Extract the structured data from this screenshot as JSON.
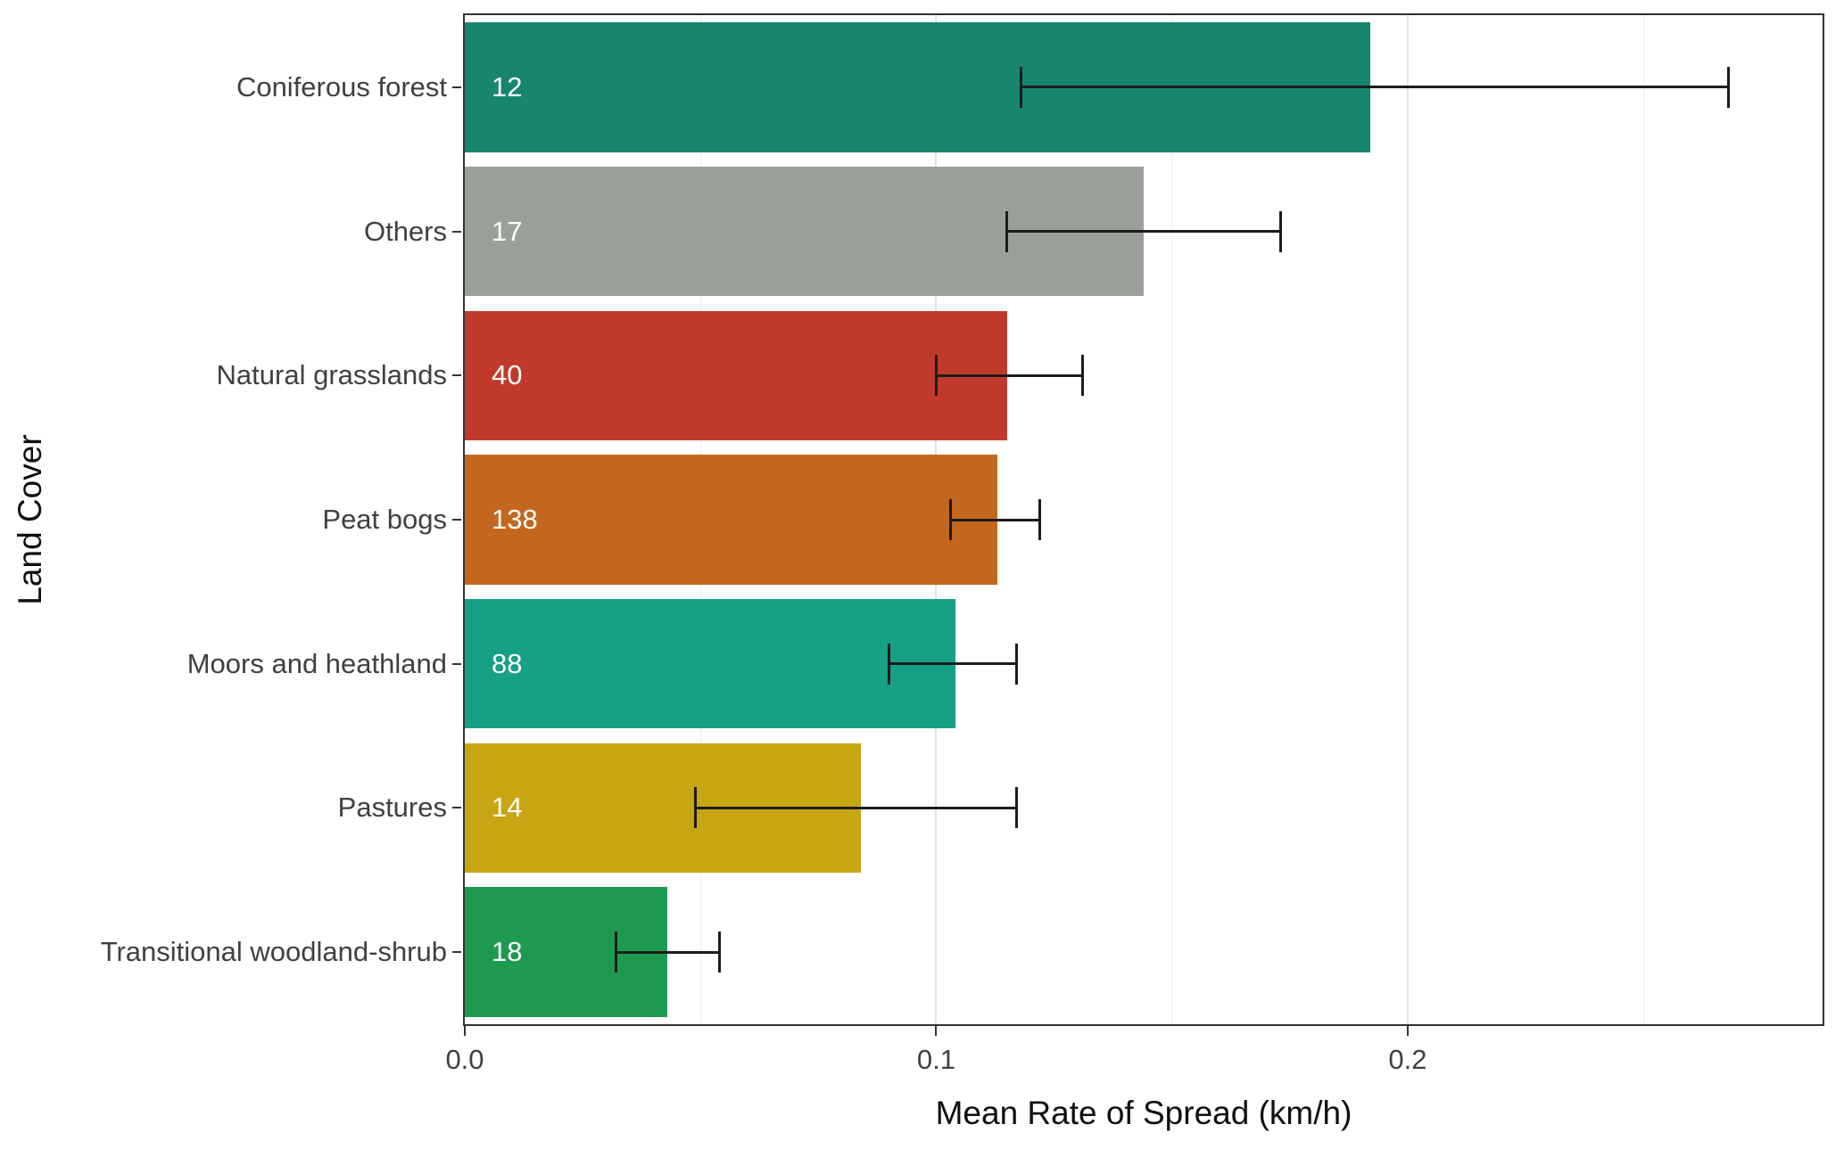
{
  "chart_data": {
    "type": "bar",
    "orientation": "horizontal",
    "title": "",
    "xlabel": "Mean Rate of Spread (km/h)",
    "ylabel": "Land Cover",
    "xlim": [
      0,
      0.288
    ],
    "bar_width_fraction": 0.9,
    "grid": true,
    "legend": "none",
    "x_ticks": [
      {
        "value": 0,
        "label": "0.0"
      },
      {
        "value": 0.1,
        "label": "0.1"
      },
      {
        "value": 0.2,
        "label": "0.2"
      }
    ],
    "x_minor_gridlines": [
      0.05,
      0.15,
      0.25
    ],
    "categories": [
      "Coniferous forest",
      "Others",
      "Natural grasslands",
      "Peat bogs",
      "Moors and heathland",
      "Pastures",
      "Transitional woodland-shrub"
    ],
    "bars": [
      {
        "category": "Coniferous forest",
        "count_label": "12",
        "value": 0.192,
        "ci_low": 0.118,
        "ci_high": 0.268,
        "color": "#17866c"
      },
      {
        "category": "Others",
        "count_label": "17",
        "value": 0.144,
        "ci_low": 0.115,
        "ci_high": 0.173,
        "color": "#9aa099"
      },
      {
        "category": "Natural grasslands",
        "count_label": "40",
        "value": 0.115,
        "ci_low": 0.1,
        "ci_high": 0.131,
        "color": "#c03a2b"
      },
      {
        "category": "Peat bogs",
        "count_label": "138",
        "value": 0.113,
        "ci_low": 0.103,
        "ci_high": 0.122,
        "color": "#c4671e"
      },
      {
        "category": "Moors and heathland",
        "count_label": "88",
        "value": 0.104,
        "ci_low": 0.09,
        "ci_high": 0.117,
        "color": "#16a085"
      },
      {
        "category": "Pastures",
        "count_label": "14",
        "value": 0.084,
        "ci_low": 0.049,
        "ci_high": 0.117,
        "color": "#c8a512"
      },
      {
        "category": "Transitional woodland-shrub",
        "count_label": "18",
        "value": 0.043,
        "ci_low": 0.032,
        "ci_high": 0.054,
        "color": "#1e9a50"
      }
    ],
    "style": {
      "bar_label_color": "#ffffff",
      "errorbar_color": "#1c1c1c",
      "axis_text_color": "#404040",
      "axis_title_color": "#0f0f0f",
      "panel_border_color": "#333333",
      "gridline_major_color": "#e3e3e3",
      "gridline_minor_color": "#eeeeee",
      "panel_background": "#ffffff"
    }
  }
}
